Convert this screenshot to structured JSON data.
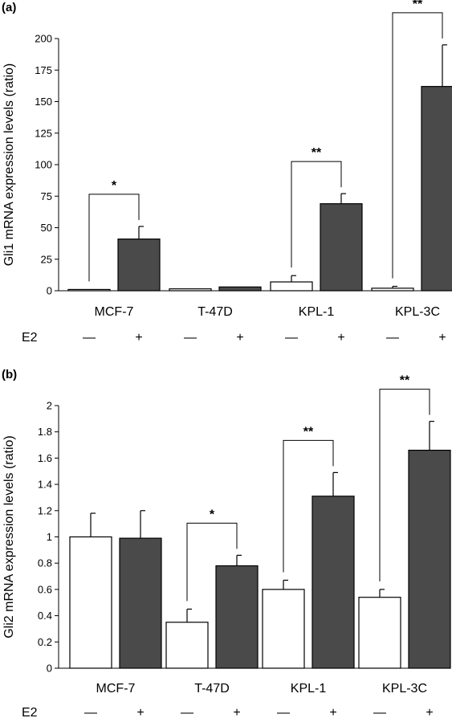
{
  "chart_data": [
    {
      "panel": "(a)",
      "type": "bar",
      "ylabel": "Gli1 mRNA expression levels (ratio)",
      "ylim": [
        0,
        200
      ],
      "yticks": [
        0,
        25,
        50,
        75,
        100,
        125,
        150,
        175,
        200
      ],
      "categories": [
        "MCF-7",
        "T-47D",
        "KPL-1",
        "KPL-3C"
      ],
      "treatment_label": "E2",
      "treatment_marks": [
        "—",
        "+"
      ],
      "series": [
        {
          "values": [
            1,
            1.5,
            7,
            2
          ],
          "errors": [
            0,
            0,
            5,
            1.5
          ],
          "color": "#ffffff"
        },
        {
          "values": [
            41,
            3,
            69,
            162
          ],
          "errors": [
            10,
            0,
            8,
            33
          ],
          "color": "#4a4a4a"
        }
      ],
      "significance": [
        "*",
        "",
        "**",
        "**"
      ]
    },
    {
      "panel": "(b)",
      "type": "bar",
      "ylabel": "Gli2 mRNA expression levels (ratio)",
      "ylim": [
        0,
        2
      ],
      "yticks": [
        "0",
        "0.2",
        "0.4",
        "0.6",
        "0.8",
        "1",
        "1.2",
        "1.4",
        "1.6",
        "1.8",
        "2"
      ],
      "categories": [
        "MCF-7",
        "T-47D",
        "KPL-1",
        "KPL-3C"
      ],
      "treatment_label": "E2",
      "treatment_marks": [
        "—",
        "+"
      ],
      "series": [
        {
          "values": [
            1.0,
            0.35,
            0.6,
            0.54
          ],
          "errors": [
            0.18,
            0.1,
            0.07,
            0.06
          ],
          "color": "#ffffff"
        },
        {
          "values": [
            0.99,
            0.78,
            1.31,
            1.66
          ],
          "errors": [
            0.21,
            0.08,
            0.18,
            0.22
          ],
          "color": "#4a4a4a"
        }
      ],
      "significance": [
        "",
        "*",
        "**",
        "**"
      ]
    }
  ]
}
